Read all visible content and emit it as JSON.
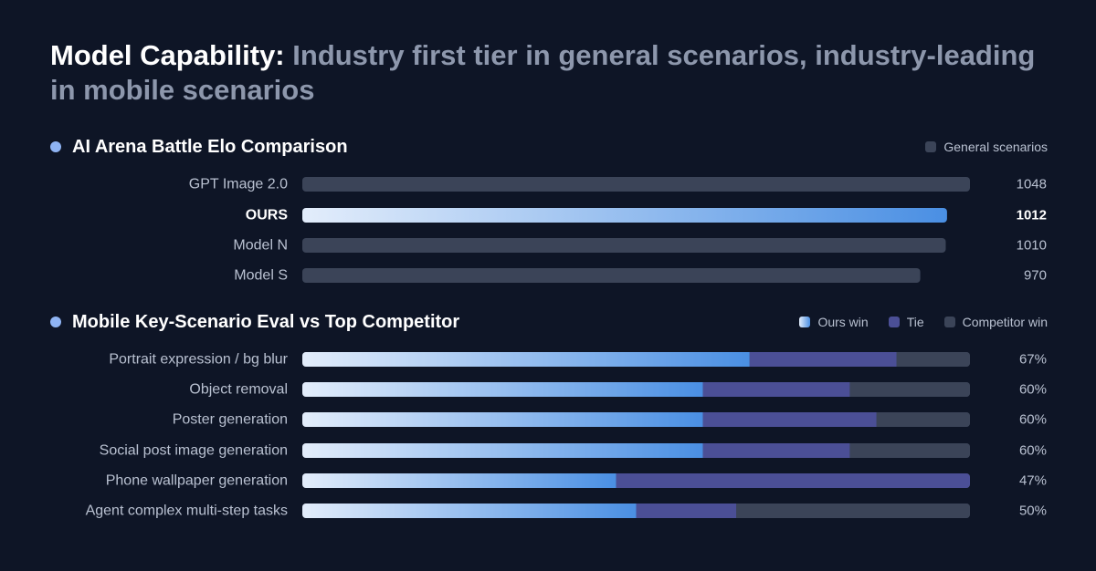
{
  "title": {
    "strong": "Model Capability:",
    "muted": "Industry first tier in general scenarios, industry-leading in mobile scenarios"
  },
  "colors": {
    "background": "#0e1526",
    "track": "#3b4458",
    "ours_start": "#e3edfb",
    "ours_end": "#4a8fe3",
    "tie": "#4b4f96",
    "competitor": "#3b4458",
    "bullet": "#8fb4f4"
  },
  "chart_data": [
    {
      "type": "bar",
      "title": "AI Arena Battle Elo Comparison",
      "legend": {
        "position": "top-right",
        "entries": [
          {
            "name": "General scenarios",
            "color": "#3b4458"
          }
        ]
      },
      "categories": [
        "GPT Image 2.0",
        "OURS",
        "Model N",
        "Model S"
      ],
      "values": [
        1048,
        1012,
        1010,
        970
      ],
      "labels": [
        "1048",
        "1012",
        "1010",
        "970"
      ],
      "highlight": "OURS",
      "xlim": [
        0,
        1048
      ],
      "grid": false
    },
    {
      "type": "bar",
      "stacked": true,
      "title": "Mobile Key-Scenario Eval vs Top Competitor",
      "legend": {
        "position": "top-right",
        "entries": [
          {
            "name": "Ours win",
            "key": "ours"
          },
          {
            "name": "Tie",
            "key": "tie"
          },
          {
            "name": "Competitor win",
            "key": "competitor"
          }
        ]
      },
      "categories": [
        "Portrait expression / bg blur",
        "Object removal",
        "Poster generation",
        "Social post image generation",
        "Phone wallpaper generation",
        "Agent complex multi-step tasks"
      ],
      "series": [
        {
          "name": "Ours win",
          "key": "ours",
          "values": [
            67,
            60,
            60,
            60,
            47,
            50
          ]
        },
        {
          "name": "Tie",
          "key": "tie",
          "values": [
            22,
            22,
            26,
            22,
            53,
            15
          ]
        },
        {
          "name": "Competitor win",
          "key": "competitor",
          "values": [
            11,
            18,
            14,
            18,
            0,
            35
          ]
        }
      ],
      "labels": [
        "67%",
        "60%",
        "60%",
        "60%",
        "47%",
        "50%"
      ],
      "xlim": [
        0,
        100
      ],
      "grid": false
    }
  ]
}
